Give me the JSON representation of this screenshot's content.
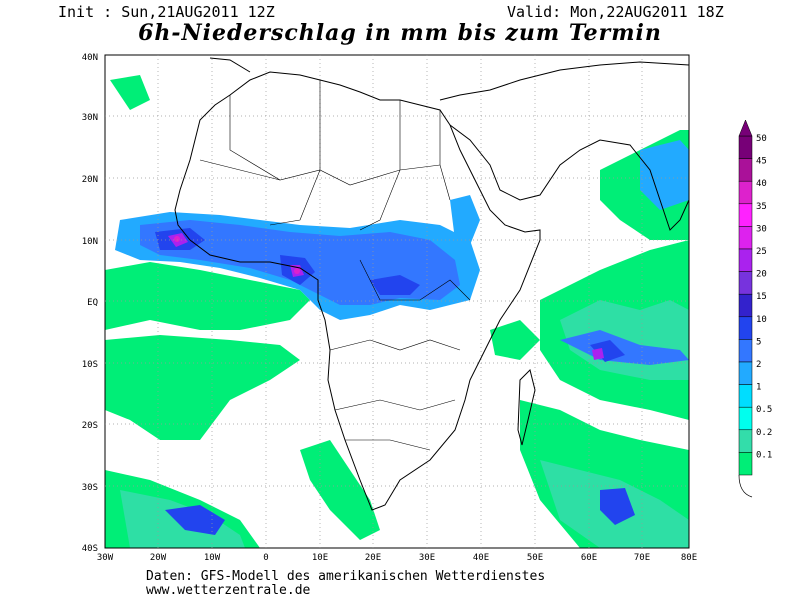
{
  "header": {
    "init": "Init : Sun,21AUG2011 12Z",
    "valid": "Valid: Mon,22AUG2011 18Z",
    "title": "6h-Niederschlag in mm bis zum Termin"
  },
  "map": {
    "lon_labels": [
      "30W",
      "20W",
      "10W",
      "0",
      "10E",
      "20E",
      "30E",
      "40E",
      "50E",
      "60E",
      "70E",
      "80E"
    ],
    "lat_labels": [
      "40N",
      "30N",
      "20N",
      "10N",
      "EQ",
      "10S",
      "20S",
      "30S",
      "40S"
    ]
  },
  "legend": {
    "levels": [
      "0.1",
      "0.2",
      "0.5",
      "1",
      "2",
      "5",
      "10",
      "15",
      "20",
      "25",
      "30",
      "35",
      "40",
      "45",
      "50"
    ],
    "colors": [
      "#00ee77",
      "#33ddaa",
      "#00ffee",
      "#00ddff",
      "#22aaff",
      "#3377ff",
      "#2244ee",
      "#3322cc",
      "#7733dd",
      "#aa22ee",
      "#dd22ee",
      "#ff22ff",
      "#dd22cc",
      "#aa1199",
      "#770077"
    ]
  },
  "footer": {
    "line1": "Daten: GFS-Modell des amerikanischen Wetterdienstes",
    "line2": "www.wetterzentrale.de"
  }
}
